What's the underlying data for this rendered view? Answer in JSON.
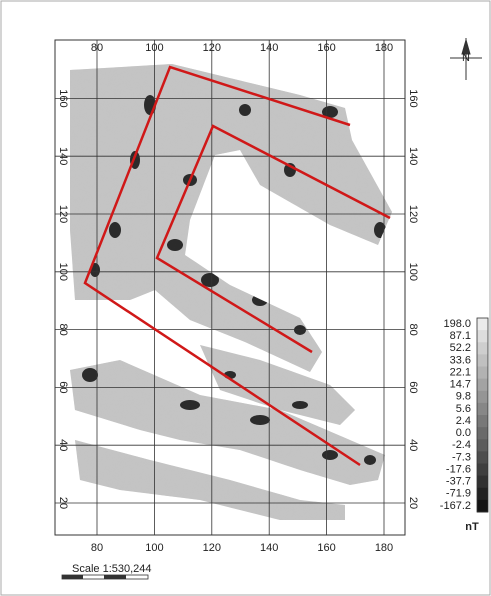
{
  "map": {
    "xticks": [
      80,
      100,
      120,
      140,
      160,
      180
    ],
    "yticks": [
      20,
      40,
      60,
      80,
      100,
      120,
      140,
      160
    ],
    "north": "N",
    "scale": "Scale 1:530,244",
    "colorbar": {
      "labels": [
        "198.0",
        "87.1",
        "52.2",
        "33.6",
        "22.1",
        "14.7",
        "9.8",
        "5.6",
        "2.4",
        "0.0",
        "-2.4",
        "-7.3",
        "-17.6",
        "-37.7",
        "-71.9",
        "-167.2"
      ],
      "unit": "nT"
    }
  }
}
